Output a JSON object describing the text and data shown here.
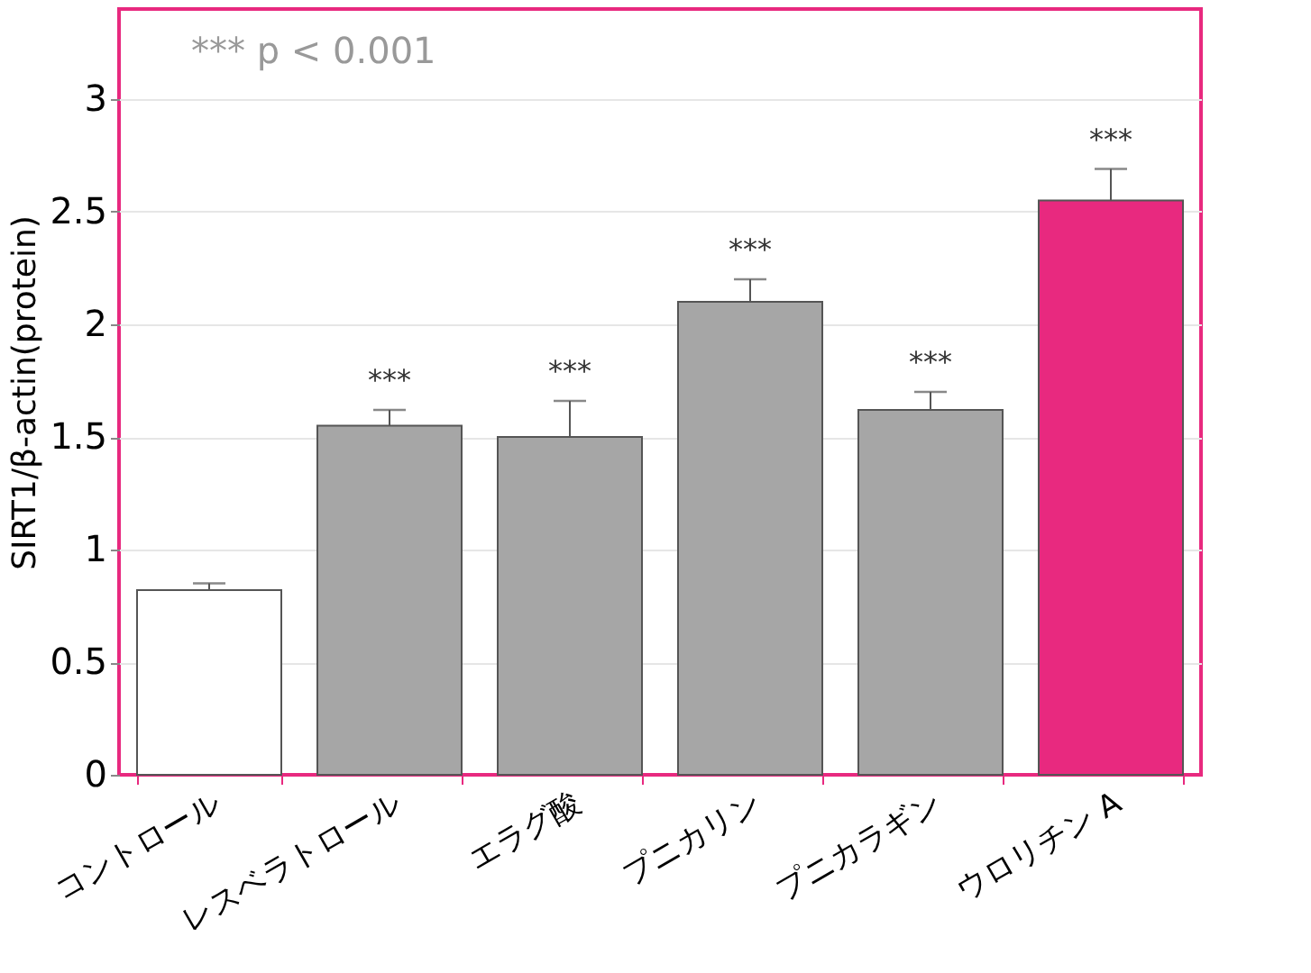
{
  "chart_data": {
    "type": "bar",
    "ylabel": "SIRT1/β-actin(protein)",
    "categories": [
      "コントロール",
      "レスベラトロール",
      "エラグ酸",
      "プニカリン",
      "プニカラギン",
      "ウロリチン A"
    ],
    "values": [
      0.82,
      1.55,
      1.5,
      2.1,
      1.62,
      2.55
    ],
    "colors": [
      "#ffffff",
      "#a6a6a6",
      "#a6a6a6",
      "#a6a6a6",
      "#a6a6a6",
      "#e8297f"
    ],
    "errors": [
      [
        0.82,
        0.85
      ],
      [
        1.55,
        1.62
      ],
      [
        1.5,
        1.66
      ],
      [
        2.1,
        2.2
      ],
      [
        1.62,
        1.7
      ],
      [
        2.55,
        2.69
      ]
    ],
    "ylim": [
      0,
      3.4
    ],
    "yticks": [
      0,
      0.5,
      1,
      1.5,
      2,
      2.5,
      3
    ],
    "grid": "y",
    "annotations": [
      "*** p < 0.001",
      {
        "text": "***",
        "x": "レスベラトロール",
        "y": 1.62
      },
      {
        "text": "***",
        "x": "エラグ酸",
        "y": 1.66
      },
      {
        "text": "***",
        "x": "プニカリン",
        "y": 2.2
      },
      {
        "text": "***",
        "x": "プニカラギン",
        "y": 1.7
      },
      {
        "text": "***",
        "x": "ウロリチン A",
        "y": 2.69
      }
    ]
  }
}
